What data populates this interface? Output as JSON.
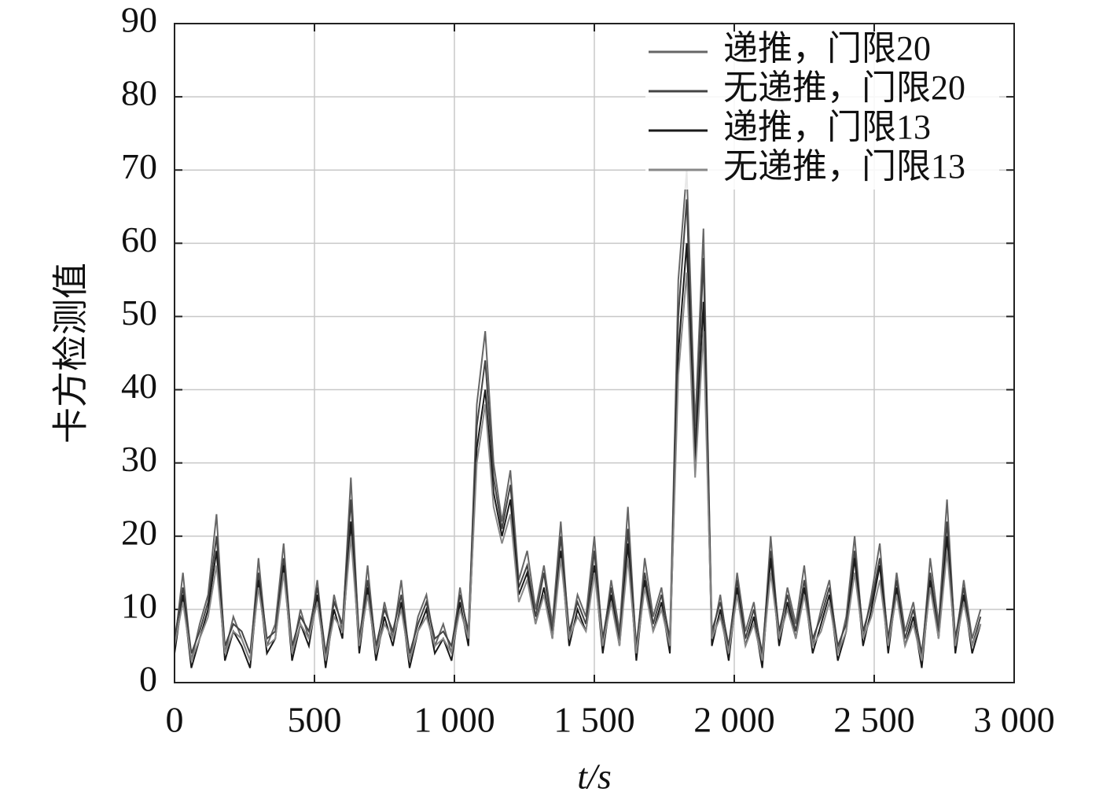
{
  "chart_data": {
    "type": "line",
    "y_label": "卡方检测值",
    "x_label": "t/s",
    "xlim": [
      0,
      3000
    ],
    "ylim": [
      0,
      90
    ],
    "xticks": [
      0,
      500,
      {
        "value": 1000,
        "label": "1 000"
      },
      {
        "value": 1500,
        "label": "1 500"
      },
      {
        "value": 2000,
        "label": "2 000"
      },
      {
        "value": 2500,
        "label": "2 500"
      },
      {
        "value": 3000,
        "label": "3 000"
      }
    ],
    "yticks": [
      0,
      10,
      20,
      30,
      40,
      50,
      60,
      70,
      80,
      90
    ],
    "grid": true,
    "legend": "upper right",
    "x": [
      0,
      30,
      60,
      90,
      120,
      150,
      180,
      210,
      240,
      270,
      300,
      330,
      360,
      390,
      420,
      450,
      480,
      510,
      540,
      570,
      600,
      630,
      660,
      690,
      720,
      750,
      780,
      810,
      840,
      870,
      900,
      930,
      960,
      990,
      1020,
      1050,
      1080,
      1110,
      1140,
      1170,
      1200,
      1230,
      1260,
      1290,
      1320,
      1350,
      1380,
      1410,
      1440,
      1470,
      1500,
      1530,
      1560,
      1590,
      1620,
      1650,
      1680,
      1710,
      1740,
      1770,
      1800,
      1830,
      1860,
      1890,
      1920,
      1950,
      1980,
      2010,
      2040,
      2070,
      2100,
      2130,
      2160,
      2190,
      2220,
      2250,
      2280,
      2310,
      2340,
      2370,
      2400,
      2430,
      2460,
      2490,
      2520,
      2550,
      2580,
      2610,
      2640,
      2670,
      2700,
      2730,
      2760,
      2790,
      2820,
      2850,
      2880
    ],
    "series": [
      {
        "name": "递推，门限20",
        "color": "#666666",
        "values": [
          5,
          15,
          3,
          8,
          12,
          23,
          4,
          9,
          6,
          3,
          17,
          5,
          8,
          19,
          4,
          10,
          6,
          14,
          3,
          12,
          7,
          28,
          5,
          16,
          4,
          11,
          6,
          14,
          3,
          9,
          12,
          5,
          8,
          4,
          13,
          6,
          38,
          48,
          30,
          22,
          29,
          14,
          18,
          10,
          16,
          8,
          22,
          6,
          12,
          9,
          20,
          5,
          14,
          7,
          24,
          4,
          17,
          9,
          13,
          5,
          55,
          70,
          35,
          62,
          6,
          12,
          4,
          15,
          7,
          11,
          3,
          20,
          6,
          13,
          8,
          16,
          5,
          10,
          14,
          4,
          9,
          20,
          6,
          12,
          19,
          5,
          15,
          7,
          11,
          3,
          17,
          8,
          25,
          5,
          14,
          6,
          10
        ]
      },
      {
        "name": "无递推，门限20",
        "color": "#444444",
        "values": [
          6,
          13,
          4,
          7,
          11,
          20,
          5,
          8,
          7,
          4,
          15,
          6,
          7,
          17,
          5,
          9,
          7,
          13,
          4,
          11,
          8,
          25,
          6,
          14,
          5,
          10,
          7,
          12,
          4,
          8,
          11,
          6,
          7,
          5,
          12,
          7,
          35,
          44,
          28,
          21,
          27,
          13,
          16,
          9,
          15,
          7,
          20,
          7,
          11,
          8,
          18,
          6,
          13,
          6,
          21,
          5,
          15,
          8,
          12,
          6,
          50,
          66,
          32,
          58,
          7,
          11,
          5,
          14,
          6,
          10,
          4,
          18,
          7,
          12,
          7,
          14,
          6,
          9,
          13,
          5,
          8,
          18,
          7,
          11,
          17,
          6,
          14,
          6,
          10,
          4,
          15,
          7,
          22,
          6,
          13,
          5,
          9
        ]
      },
      {
        "name": "递推，门限13",
        "color": "#1a1a1a",
        "values": [
          4,
          12,
          2,
          6,
          10,
          18,
          3,
          7,
          5,
          2,
          14,
          4,
          6,
          16,
          3,
          8,
          5,
          12,
          2,
          10,
          6,
          22,
          4,
          13,
          3,
          9,
          5,
          11,
          2,
          7,
          10,
          4,
          6,
          3,
          11,
          5,
          32,
          40,
          26,
          20,
          25,
          12,
          15,
          8,
          13,
          6,
          18,
          5,
          10,
          7,
          16,
          4,
          12,
          5,
          19,
          3,
          14,
          7,
          11,
          4,
          45,
          60,
          30,
          52,
          5,
          10,
          3,
          13,
          5,
          9,
          2,
          17,
          5,
          11,
          6,
          13,
          4,
          8,
          12,
          3,
          7,
          17,
          5,
          10,
          16,
          4,
          13,
          5,
          9,
          2,
          14,
          6,
          20,
          4,
          12,
          4,
          8
        ]
      },
      {
        "name": "无递推，门限13",
        "color": "#888888",
        "values": [
          5,
          11,
          3,
          6,
          9,
          16,
          4,
          7,
          6,
          3,
          13,
          5,
          6,
          15,
          4,
          8,
          6,
          11,
          3,
          9,
          7,
          20,
          5,
          12,
          4,
          8,
          6,
          10,
          3,
          7,
          9,
          5,
          6,
          4,
          10,
          6,
          30,
          38,
          24,
          19,
          23,
          11,
          14,
          8,
          12,
          6,
          17,
          6,
          9,
          7,
          15,
          5,
          11,
          5,
          17,
          4,
          13,
          7,
          10,
          5,
          42,
          56,
          28,
          48,
          6,
          9,
          4,
          12,
          5,
          8,
          3,
          15,
          6,
          10,
          6,
          12,
          5,
          7,
          11,
          4,
          7,
          15,
          6,
          9,
          14,
          5,
          12,
          5,
          8,
          3,
          13,
          6,
          18,
          5,
          11,
          5,
          8
        ]
      }
    ]
  }
}
